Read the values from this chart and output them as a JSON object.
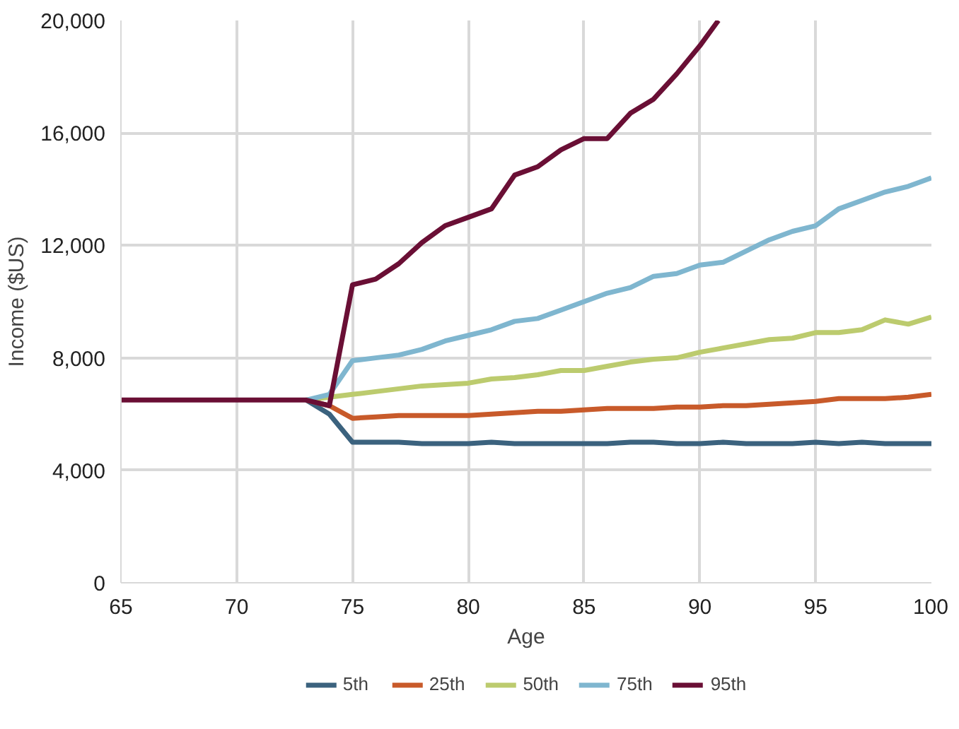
{
  "chart_data": {
    "type": "line",
    "xlabel": "Age",
    "ylabel": "Income ($US)",
    "xlim": [
      65,
      100
    ],
    "ylim": [
      0,
      20000
    ],
    "xticks": [
      65,
      70,
      75,
      80,
      85,
      90,
      95,
      100
    ],
    "yticks": [
      {
        "value": 0,
        "label": "0"
      },
      {
        "value": 4000,
        "label": "4,000"
      },
      {
        "value": 8000,
        "label": "8,000"
      },
      {
        "value": 12000,
        "label": "12,000"
      },
      {
        "value": 16000,
        "label": "16,000"
      },
      {
        "value": 20000,
        "label": "20,000"
      }
    ],
    "grid": true,
    "legend": "bottom",
    "line_style": "solid",
    "marker": "none",
    "x": [
      65,
      66,
      67,
      68,
      69,
      70,
      71,
      72,
      73,
      74,
      75,
      76,
      77,
      78,
      79,
      80,
      81,
      82,
      83,
      84,
      85,
      86,
      87,
      88,
      89,
      90,
      90.8
    ],
    "series": [
      {
        "name": "5th",
        "color": "#3b627e",
        "x": [
          73,
          74,
          75,
          76,
          77,
          78,
          79,
          80,
          81,
          82,
          83,
          84,
          85,
          86,
          87,
          88,
          89,
          90,
          91,
          92,
          93,
          94,
          95,
          96,
          97,
          98,
          99,
          100
        ],
        "values": [
          6500,
          6000,
          5000,
          5000,
          5000,
          4950,
          4950,
          4950,
          5000,
          4950,
          4950,
          4950,
          4950,
          4950,
          5000,
          5000,
          4950,
          4950,
          5000,
          4950,
          4950,
          4950,
          5000,
          4950,
          5000,
          4950,
          4950,
          4950
        ]
      },
      {
        "name": "25th",
        "color": "#c85a2a",
        "x": [
          73,
          74,
          75,
          76,
          77,
          78,
          79,
          80,
          81,
          82,
          83,
          84,
          85,
          86,
          87,
          88,
          89,
          90,
          91,
          92,
          93,
          94,
          95,
          96,
          97,
          98,
          99,
          100
        ],
        "values": [
          6500,
          6300,
          5850,
          5900,
          5950,
          5950,
          5950,
          5950,
          6000,
          6050,
          6100,
          6100,
          6150,
          6200,
          6200,
          6200,
          6250,
          6250,
          6300,
          6300,
          6350,
          6400,
          6450,
          6550,
          6550,
          6550,
          6600,
          6700
        ]
      },
      {
        "name": "50th",
        "color": "#bccb6e",
        "x": [
          73,
          74,
          75,
          76,
          77,
          78,
          79,
          80,
          81,
          82,
          83,
          84,
          85,
          86,
          87,
          88,
          89,
          90,
          91,
          92,
          93,
          94,
          95,
          96,
          97,
          98,
          99,
          100
        ],
        "values": [
          6500,
          6600,
          6700,
          6800,
          6900,
          7000,
          7050,
          7100,
          7250,
          7300,
          7400,
          7550,
          7550,
          7700,
          7850,
          7950,
          8000,
          8200,
          8350,
          8500,
          8650,
          8700,
          8900,
          8900,
          9000,
          9350,
          9200,
          9450
        ]
      },
      {
        "name": "75th",
        "color": "#7fb6cf",
        "x": [
          73,
          74,
          75,
          76,
          77,
          78,
          79,
          80,
          81,
          82,
          83,
          84,
          85,
          86,
          87,
          88,
          89,
          90,
          91,
          92,
          93,
          94,
          95,
          96,
          97,
          98,
          99,
          100
        ],
        "values": [
          6500,
          6700,
          7900,
          8000,
          8100,
          8300,
          8600,
          8800,
          9000,
          9300,
          9400,
          9700,
          10000,
          10300,
          10500,
          10900,
          11000,
          11300,
          11400,
          11800,
          12200,
          12500,
          12700,
          13300,
          13600,
          13900,
          14100,
          14400
        ]
      },
      {
        "name": "95th",
        "color": "#6a0f35",
        "values": [
          6500,
          6500,
          6500,
          6500,
          6500,
          6500,
          6500,
          6500,
          6500,
          6300,
          10600,
          10800,
          11350,
          12100,
          12700,
          13000,
          13300,
          14500,
          14800,
          15400,
          15800,
          15800,
          16700,
          17200,
          18100,
          19100,
          20000
        ]
      }
    ]
  }
}
